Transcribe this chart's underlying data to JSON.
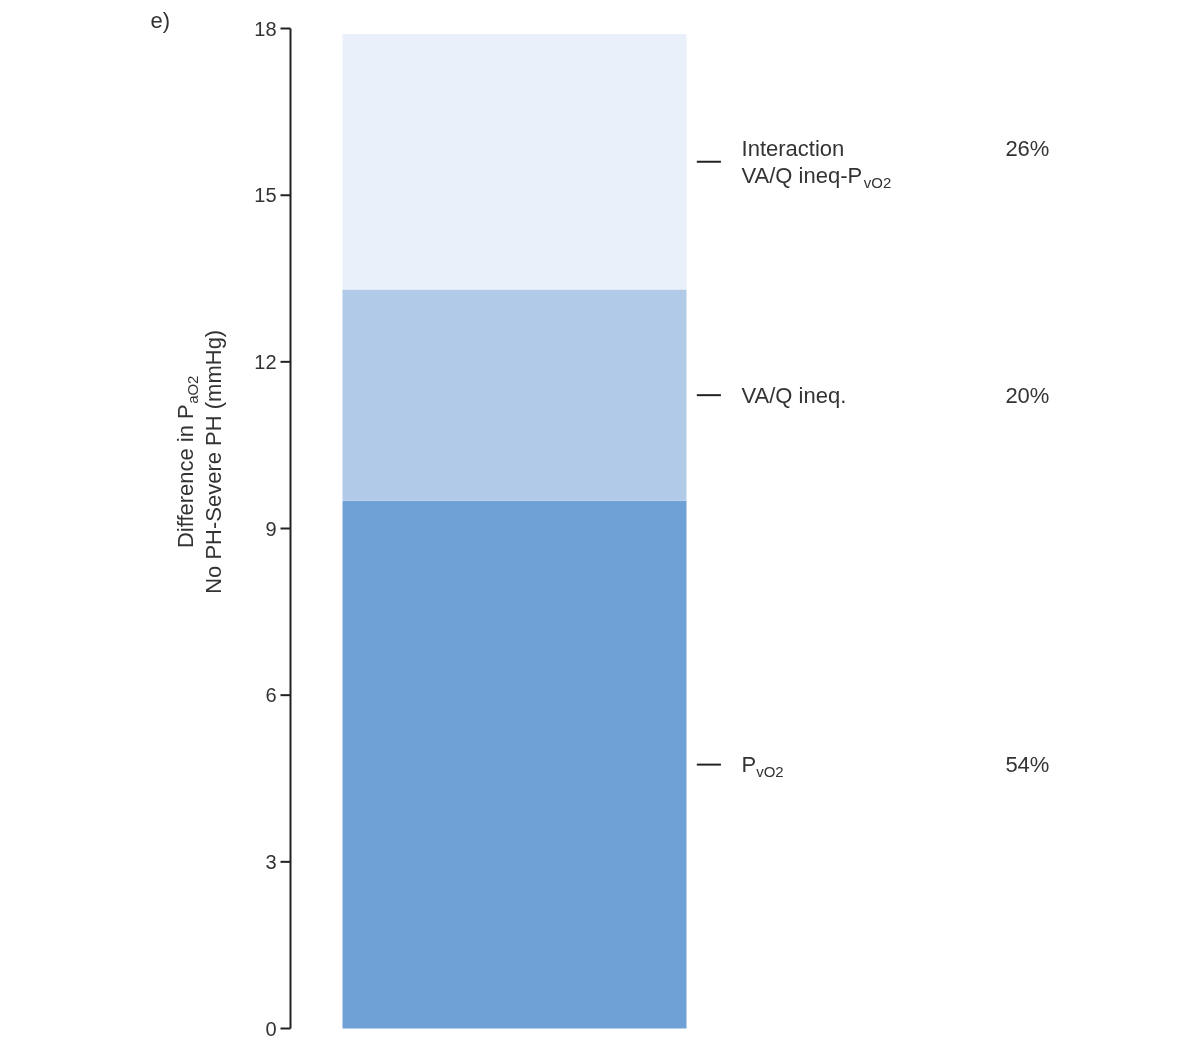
{
  "chart_data": {
    "type": "bar",
    "stacked": true,
    "ylabel": "Difference in P$_{aO2}$\nNo PH-Severe PH (mmHg)",
    "categories": [
      null
    ],
    "series": [
      {
        "name": "P$_{vO2}$",
        "color": "#6fa0d6",
        "values": [
          9.5
        ]
      },
      {
        "name": "VA/Q ineq.",
        "color": "#b0cae8",
        "values": [
          3.8
        ]
      },
      {
        "name": "Interaction\nVA/Q ineq-P$_{vO2}$",
        "color": "#e9f0fa",
        "values": [
          4.6
        ]
      }
    ],
    "ylim": [
      0,
      18
    ],
    "yticks": [
      0,
      3,
      6,
      9,
      12,
      15,
      18
    ],
    "grid": false,
    "legend": false,
    "annotations": [
      "e)",
      "54%",
      "20%",
      "26%"
    ]
  }
}
